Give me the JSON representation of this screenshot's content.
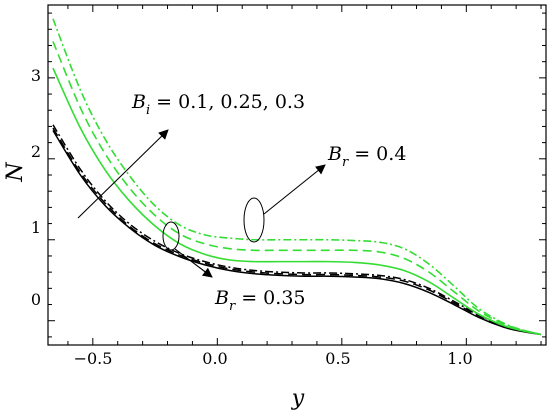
{
  "chart_data": {
    "type": "line",
    "title": "",
    "xlabel": "y",
    "ylabel": "N",
    "xlim": [
      -0.68,
      1.32
    ],
    "ylim": [
      -0.3,
      3.9
    ],
    "xticks": [
      "−0.5",
      "0.0",
      "0.5",
      "1.0"
    ],
    "xtick_values": [
      -0.5,
      0.0,
      0.5,
      1.0
    ],
    "yticks": [
      "0",
      "1",
      "2",
      "3"
    ],
    "ytick_values": [
      0,
      1,
      2,
      3
    ],
    "grid": false,
    "legend": "none",
    "x": [
      -0.66,
      -0.55,
      -0.45,
      -0.35,
      -0.25,
      -0.15,
      -0.05,
      0.05,
      0.15,
      0.25,
      0.35,
      0.45,
      0.55,
      0.65,
      0.75,
      0.85,
      0.95,
      1.05,
      1.15,
      1.22,
      1.3
    ],
    "series": [
      {
        "group": "B_r = 0.35",
        "style": "solid",
        "color": "#000000",
        "values": [
          2.35,
          1.8,
          1.42,
          1.14,
          0.93,
          0.79,
          0.69,
          0.62,
          0.58,
          0.56,
          0.55,
          0.55,
          0.54,
          0.52,
          0.46,
          0.35,
          0.2,
          0.04,
          -0.08,
          -0.13,
          -0.17
        ]
      },
      {
        "group": "B_r = 0.35",
        "style": "dashed",
        "color": "#000000",
        "values": [
          2.38,
          1.83,
          1.45,
          1.16,
          0.95,
          0.81,
          0.71,
          0.64,
          0.6,
          0.58,
          0.57,
          0.57,
          0.56,
          0.54,
          0.49,
          0.38,
          0.22,
          0.06,
          -0.07,
          -0.12,
          -0.17
        ]
      },
      {
        "group": "B_r = 0.35",
        "style": "dashdot",
        "color": "#000000",
        "values": [
          2.42,
          1.87,
          1.48,
          1.19,
          0.98,
          0.83,
          0.73,
          0.66,
          0.62,
          0.6,
          0.59,
          0.59,
          0.58,
          0.56,
          0.51,
          0.4,
          0.24,
          0.07,
          -0.06,
          -0.12,
          -0.17
        ]
      },
      {
        "group": "B_r = 0.4",
        "style": "solid",
        "color": "#33dd33",
        "values": [
          3.12,
          2.38,
          1.86,
          1.47,
          1.17,
          0.95,
          0.82,
          0.75,
          0.73,
          0.73,
          0.73,
          0.73,
          0.72,
          0.69,
          0.62,
          0.48,
          0.28,
          0.08,
          -0.06,
          -0.12,
          -0.17
        ]
      },
      {
        "group": "B_r = 0.4",
        "style": "dashed",
        "color": "#33dd33",
        "values": [
          3.45,
          2.63,
          2.06,
          1.63,
          1.3,
          1.07,
          0.95,
          0.89,
          0.87,
          0.87,
          0.87,
          0.87,
          0.87,
          0.85,
          0.77,
          0.6,
          0.36,
          0.12,
          -0.04,
          -0.11,
          -0.17
        ]
      },
      {
        "group": "B_r = 0.4",
        "style": "dashdot",
        "color": "#33dd33",
        "values": [
          3.73,
          2.85,
          2.24,
          1.78,
          1.42,
          1.18,
          1.06,
          1.02,
          1.0,
          1.0,
          1.0,
          1.0,
          0.99,
          0.97,
          0.89,
          0.7,
          0.43,
          0.15,
          -0.03,
          -0.11,
          -0.17
        ]
      }
    ],
    "annotations": {
      "bi": {
        "base": "B",
        "sub": "i",
        "rest": " = 0.1, 0.25, 0.3"
      },
      "br_green": {
        "base": "B",
        "sub": "r",
        "rest": " = 0.4"
      },
      "br_black": {
        "base": "B",
        "sub": "r",
        "rest": " = 0.35"
      }
    }
  }
}
